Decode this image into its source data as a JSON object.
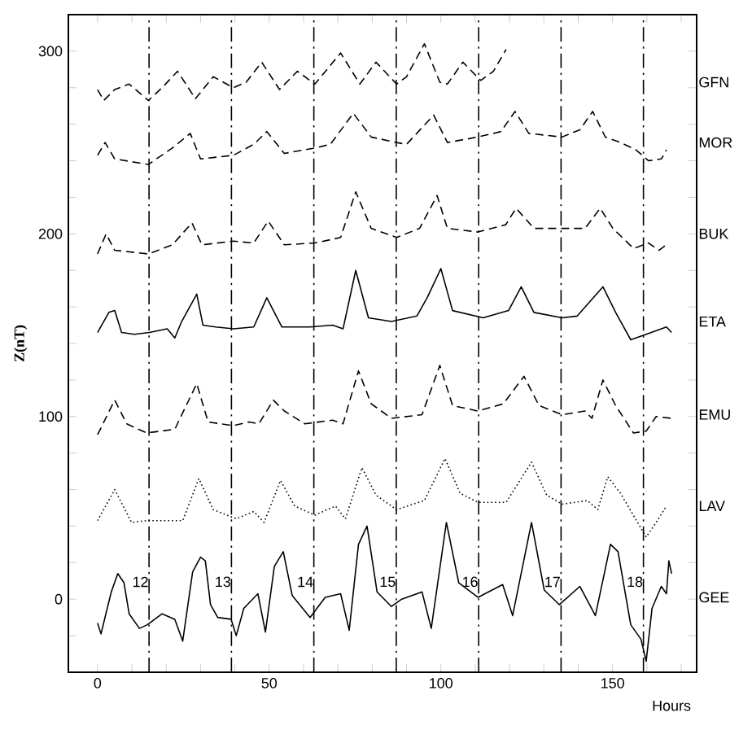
{
  "chart_data": {
    "type": "line",
    "xlabel": "Hours",
    "ylabel": "Z(nT)",
    "xlim": [
      -8.5,
      174.5
    ],
    "ylim": [
      -40,
      320
    ],
    "xticks": [
      0,
      {
        "value": 10,
        "label": null
      },
      {
        "value": 20,
        "label": null
      },
      {
        "value": 30,
        "label": null
      },
      {
        "value": 40,
        "label": null
      },
      50,
      {
        "value": 60,
        "label": null
      },
      {
        "value": 70,
        "label": null
      },
      {
        "value": 80,
        "label": null
      },
      {
        "value": 90,
        "label": null
      },
      100,
      {
        "value": 110,
        "label": null
      },
      {
        "value": 120,
        "label": null
      },
      {
        "value": 130,
        "label": null
      },
      {
        "value": 140,
        "label": null
      },
      150,
      {
        "value": 160,
        "label": null
      },
      {
        "value": 170,
        "label": null
      }
    ],
    "yticks": [
      {
        "value": -40,
        "label": null
      },
      {
        "value": -20,
        "label": null
      },
      0,
      {
        "value": 20,
        "label": null
      },
      {
        "value": 40,
        "label": null
      },
      {
        "value": 60,
        "label": null
      },
      {
        "value": 80,
        "label": null
      },
      100,
      {
        "value": 120,
        "label": null
      },
      {
        "value": 140,
        "label": null
      },
      {
        "value": 160,
        "label": null
      },
      {
        "value": 180,
        "label": null
      },
      200,
      {
        "value": 220,
        "label": null
      },
      {
        "value": 240,
        "label": null
      },
      {
        "value": 260,
        "label": null
      },
      {
        "value": 280,
        "label": null
      },
      300,
      {
        "value": 320,
        "label": null
      }
    ],
    "grid": false,
    "legend": false,
    "marker": "none",
    "series": [
      {
        "name": "GFN",
        "color": "#000000",
        "line_style": "dashed",
        "x": [
          0,
          1.8,
          5,
          9.2,
          14.8,
          18.8,
          23.3,
          28.5,
          33.7,
          39.6,
          43.3,
          47.8,
          53,
          58.2,
          63.3,
          70.8,
          76.4,
          81.1,
          87.1,
          90,
          95.2,
          99.7,
          101.9,
          106.4,
          111.6,
          115.3,
          119
        ],
        "values": [
          279,
          273,
          279,
          282,
          273,
          280,
          289,
          274,
          286,
          280,
          283,
          294,
          279,
          289,
          282,
          299,
          282,
          294,
          282,
          286,
          304,
          283,
          282,
          294,
          284,
          289,
          301
        ]
      },
      {
        "name": "MOR",
        "color": "#000000",
        "line_style": "dashed",
        "x": [
          0,
          2.2,
          5,
          14.8,
          21.8,
          27,
          30,
          39.6,
          45.5,
          49.3,
          54.4,
          63.3,
          67.8,
          74.5,
          79.7,
          87.1,
          90,
          97.9,
          101.9,
          110.8,
          117.5,
          121.6,
          125.6,
          135.3,
          140.5,
          144.2,
          147.9,
          152.3,
          156.8,
          160.5,
          164.2,
          165.7
        ],
        "values": [
          243,
          250,
          241,
          238,
          247,
          255,
          241,
          243,
          249,
          256,
          244,
          247,
          249,
          266,
          253,
          250,
          249,
          265,
          250,
          253,
          256,
          267,
          255,
          253,
          257,
          267,
          253,
          250,
          246,
          240,
          241,
          246
        ]
      },
      {
        "name": "BUK",
        "color": "#000000",
        "line_style": "dashed",
        "x": [
          0,
          2.5,
          5,
          14.8,
          21.8,
          27.5,
          30.4,
          39.6,
          45.5,
          49.7,
          54.4,
          63.3,
          70.8,
          75.2,
          79.7,
          87.1,
          93.8,
          98.9,
          101.9,
          110.8,
          118.9,
          121.9,
          127.1,
          135.3,
          142,
          146.4,
          150.1,
          156.1,
          160.5,
          163.5,
          166.4
        ],
        "values": [
          189,
          200,
          191,
          189,
          194,
          206,
          194,
          196,
          195,
          207,
          194,
          195,
          198,
          223,
          203,
          198,
          203,
          221,
          203,
          201,
          205,
          214,
          203,
          203,
          203,
          214,
          203,
          192,
          195,
          191,
          195
        ]
      },
      {
        "name": "ETA",
        "color": "#000000",
        "line_style": "solid",
        "x": [
          0,
          3.3,
          5,
          7,
          10.7,
          15.1,
          20.3,
          22.5,
          24.5,
          28.9,
          30.7,
          34.4,
          39.6,
          45.5,
          49.3,
          53.7,
          61.9,
          68.5,
          71.5,
          75.2,
          78.9,
          85.6,
          93,
          96,
          100,
          103.4,
          112.3,
          119.7,
          123.4,
          127.1,
          135.3,
          139.7,
          147.2,
          150.9,
          155.3,
          159.8,
          165.7,
          167.2
        ],
        "values": [
          146,
          157,
          158,
          146,
          145,
          146,
          148,
          143,
          152,
          167,
          150,
          149,
          148,
          149,
          165,
          149,
          149,
          150,
          148,
          180,
          154,
          152,
          155,
          165,
          181,
          158,
          154,
          158,
          171,
          157,
          154,
          155,
          171,
          157,
          142,
          145,
          149,
          146
        ]
      },
      {
        "name": "EMU",
        "color": "#000000",
        "line_style": "dashed",
        "x": [
          0,
          5,
          8.5,
          14.3,
          22.5,
          28.9,
          32.2,
          39.6,
          44.1,
          47,
          51.2,
          54.4,
          60.4,
          68.5,
          71.5,
          76,
          79.7,
          85.6,
          94.5,
          99.7,
          103.4,
          110.8,
          118.2,
          124.2,
          128.6,
          135.3,
          142,
          144,
          147.2,
          150.9,
          156.1,
          159.8,
          162.7,
          167.2
        ],
        "values": [
          90,
          109,
          96,
          91,
          93,
          118,
          97,
          95,
          97,
          96,
          109,
          103,
          96,
          98,
          96,
          125,
          107,
          99,
          101,
          128,
          106,
          103,
          107,
          122,
          106,
          101,
          103,
          99,
          120,
          106,
          91,
          92,
          100,
          99
        ]
      },
      {
        "name": "LAV",
        "color": "#000000",
        "line_style": "dotted",
        "x": [
          0,
          5,
          9.9,
          14.3,
          24.8,
          29.5,
          33.7,
          40.4,
          45.5,
          48.5,
          53.3,
          57.4,
          63.3,
          69.3,
          72.2,
          77,
          81.1,
          87.1,
          95.2,
          101.2,
          105.6,
          110.8,
          119,
          126.4,
          130.8,
          135.3,
          142.7,
          145.7,
          148.6,
          152.3,
          159.8,
          162.7,
          165.7
        ],
        "values": [
          43,
          60,
          42,
          43,
          43,
          66,
          49,
          44,
          48,
          42,
          65,
          51,
          46,
          51,
          44,
          72,
          57,
          49,
          54,
          77,
          58,
          53,
          53,
          75,
          57,
          52,
          54,
          49,
          67,
          58,
          34,
          42,
          51
        ]
      },
      {
        "name": "GEE",
        "color": "#000000",
        "line_style": "solid",
        "x": [
          0,
          1,
          4,
          5.9,
          7.7,
          9.2,
          12.2,
          14.5,
          18.8,
          22.5,
          24.8,
          27.7,
          30,
          31.4,
          32.9,
          35,
          38.9,
          40.4,
          42.6,
          46.7,
          48.9,
          51.5,
          54.1,
          56.7,
          61.9,
          66.3,
          70.8,
          73.3,
          76,
          78.5,
          81.4,
          85.6,
          88.6,
          94.5,
          97.2,
          101.6,
          105.2,
          110.8,
          118,
          120.9,
          126.4,
          130.1,
          134.5,
          140.5,
          145,
          149.4,
          151.6,
          155.3,
          158.3,
          159.8,
          161.5,
          164.2,
          165.7,
          166.4,
          167.2
        ],
        "values": [
          -13,
          -19,
          4,
          14,
          9,
          -8,
          -16,
          -14,
          -8,
          -11,
          -23,
          15,
          23,
          21,
          -3,
          -10,
          -11,
          -20,
          -5,
          3,
          -18,
          18,
          26,
          2,
          -10,
          1,
          3,
          -17,
          30,
          40,
          4,
          -4,
          0,
          4,
          -16,
          42,
          9,
          1,
          8,
          -9,
          42,
          5,
          -3,
          7,
          -9,
          30,
          26,
          -14,
          -22,
          -34,
          -5,
          7,
          3,
          21,
          14
        ]
      }
    ],
    "ref_lines": [
      {
        "axis": "x",
        "value": 15,
        "line_style": "dashed"
      },
      {
        "axis": "x",
        "value": 39,
        "line_style": "dashed"
      },
      {
        "axis": "x",
        "value": 63,
        "line_style": "dashed"
      },
      {
        "axis": "x",
        "value": 87,
        "line_style": "dashed"
      },
      {
        "axis": "x",
        "value": 111,
        "line_style": "dashed"
      },
      {
        "axis": "x",
        "value": 135,
        "line_style": "dashed"
      },
      {
        "axis": "x",
        "value": 159,
        "line_style": "dashed"
      }
    ],
    "annotations": [
      "12",
      "13",
      "14",
      "15",
      "16",
      "17",
      "18"
    ]
  }
}
